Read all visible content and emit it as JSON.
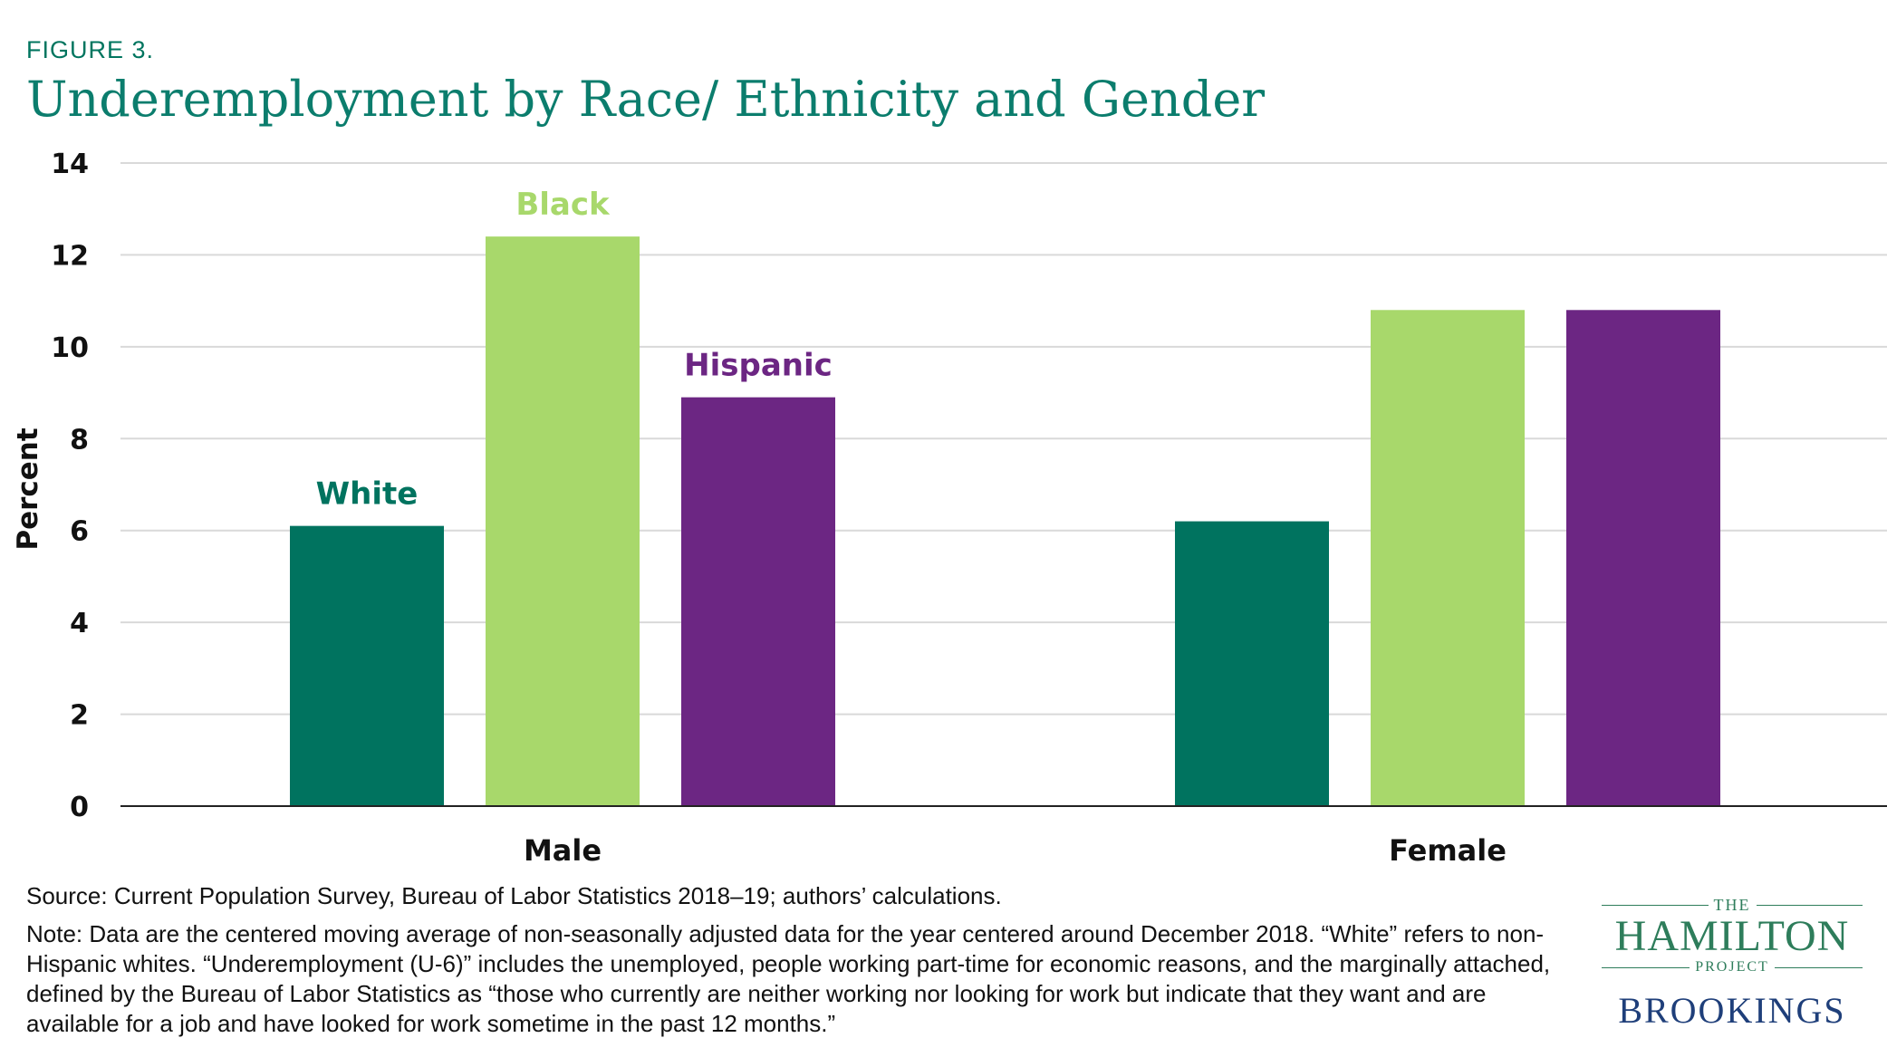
{
  "header": {
    "figure_label": "FIGURE 3.",
    "title": "Underemployment by Race/ Ethnicity and Gender"
  },
  "chart_data": {
    "type": "bar",
    "categories": [
      "Male",
      "Female"
    ],
    "series": [
      {
        "name": "White",
        "color": "#00735f",
        "values": [
          6.1,
          6.2
        ]
      },
      {
        "name": "Black",
        "color": "#a8d86b",
        "values": [
          12.4,
          10.8
        ]
      },
      {
        "name": "Hispanic",
        "color": "#6c2683",
        "values": [
          8.9,
          10.8
        ]
      }
    ],
    "ylabel": "Percent",
    "yticks": [
      0,
      2,
      4,
      6,
      8,
      10,
      12,
      14
    ],
    "ylim": [
      0,
      14
    ],
    "grid": true,
    "legend": "series names labeled above the Male bars"
  },
  "footer": {
    "source": "Source: Current Population Survey, Bureau of Labor Statistics 2018–19; authors’ calculations.",
    "note": "Note: Data are the centered moving average of non-seasonally adjusted data for the year centered around December 2018. “White” refers to non-Hispanic whites. “Underemployment (U-6)” includes the unemployed, people working part-time for economic reasons, and the marginally attached, defined by the Bureau of Labor Statistics as “those who currently are neither working nor looking for work but indicate that they want and are available for a job and have looked for work sometime in the past 12 months.”"
  },
  "logo": {
    "the": "THE",
    "name": "HAMILTON",
    "project": "PROJECT",
    "brookings": "BROOKINGS"
  }
}
